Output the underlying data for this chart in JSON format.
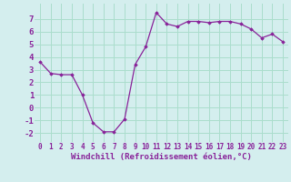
{
  "x": [
    0,
    1,
    2,
    3,
    4,
    5,
    6,
    7,
    8,
    9,
    10,
    11,
    12,
    13,
    14,
    15,
    16,
    17,
    18,
    19,
    20,
    21,
    22,
    23
  ],
  "y": [
    3.6,
    2.7,
    2.6,
    2.6,
    1.0,
    -1.2,
    -1.9,
    -1.9,
    -0.9,
    3.4,
    4.8,
    7.5,
    6.6,
    6.4,
    6.8,
    6.8,
    6.7,
    6.8,
    6.8,
    6.6,
    6.2,
    5.5,
    5.8,
    5.2
  ],
  "line_color": "#882299",
  "marker": "D",
  "marker_size": 1.8,
  "bg_color": "#d4eeee",
  "grid_color": "#aaddcc",
  "xlabel": "Windchill (Refroidissement éolien,°C)",
  "xlabel_fontsize": 6.5,
  "ylabel_ticks": [
    -2,
    -1,
    0,
    1,
    2,
    3,
    4,
    5,
    6,
    7
  ],
  "xtick_labels": [
    "0",
    "1",
    "2",
    "3",
    "4",
    "5",
    "6",
    "7",
    "8",
    "9",
    "10",
    "11",
    "12",
    "13",
    "14",
    "15",
    "16",
    "17",
    "18",
    "19",
    "20",
    "21",
    "22",
    "23"
  ],
  "xlim": [
    -0.5,
    23.5
  ],
  "ylim": [
    -2.7,
    8.2
  ],
  "ytick_fontsize": 6.5,
  "xtick_fontsize": 5.5,
  "label_color": "#882299"
}
